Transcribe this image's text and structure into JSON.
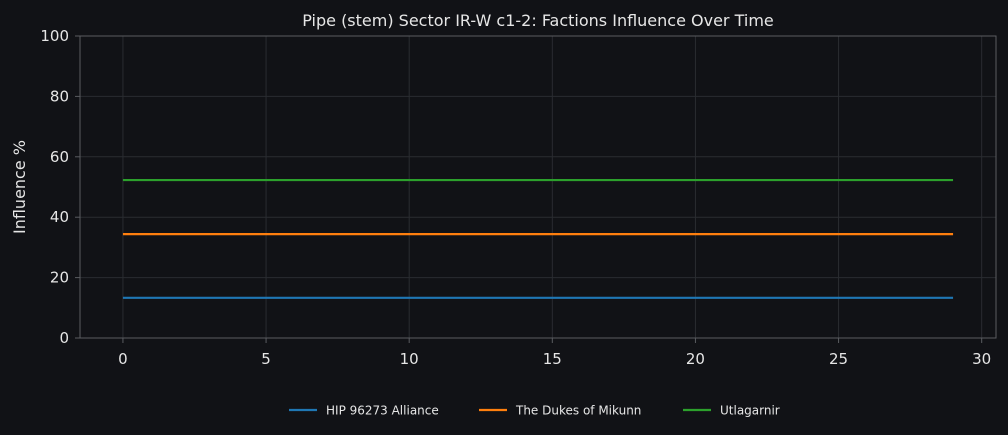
{
  "chart_data": {
    "type": "line",
    "title": "Pipe (stem) Sector IR-W c1-2: Factions Influence Over Time",
    "xlabel": "",
    "ylabel": "Influence %",
    "xlim": [
      -1.5,
      30.5
    ],
    "ylim": [
      0,
      100
    ],
    "x_ticks": [
      0,
      5,
      10,
      15,
      20,
      25,
      30
    ],
    "y_ticks": [
      0,
      20,
      40,
      60,
      80,
      100
    ],
    "grid": true,
    "legend_position": "bottom-center",
    "x": [
      0,
      1,
      2,
      3,
      4,
      5,
      6,
      7,
      8,
      9,
      10,
      11,
      12,
      13,
      14,
      15,
      16,
      17,
      18,
      19,
      20,
      21,
      22,
      23,
      24,
      25,
      26,
      27,
      28,
      29
    ],
    "series": [
      {
        "name": "HIP 96273 Alliance",
        "color": "#1f77b4",
        "values": [
          13.3,
          13.3,
          13.3,
          13.3,
          13.3,
          13.3,
          13.3,
          13.3,
          13.3,
          13.3,
          13.3,
          13.3,
          13.3,
          13.3,
          13.3,
          13.3,
          13.3,
          13.3,
          13.3,
          13.3,
          13.3,
          13.3,
          13.3,
          13.3,
          13.3,
          13.3,
          13.3,
          13.3,
          13.3,
          13.3
        ]
      },
      {
        "name": "The Dukes of Mikunn",
        "color": "#ff7f0e",
        "values": [
          34.4,
          34.4,
          34.4,
          34.4,
          34.4,
          34.4,
          34.4,
          34.4,
          34.4,
          34.4,
          34.4,
          34.4,
          34.4,
          34.4,
          34.4,
          34.4,
          34.4,
          34.4,
          34.4,
          34.4,
          34.4,
          34.4,
          34.4,
          34.4,
          34.4,
          34.4,
          34.4,
          34.4,
          34.4,
          34.4
        ]
      },
      {
        "name": "Utlagarnir",
        "color": "#2ca02c",
        "values": [
          52.3,
          52.3,
          52.3,
          52.3,
          52.3,
          52.3,
          52.3,
          52.3,
          52.3,
          52.3,
          52.3,
          52.3,
          52.3,
          52.3,
          52.3,
          52.3,
          52.3,
          52.3,
          52.3,
          52.3,
          52.3,
          52.3,
          52.3,
          52.3,
          52.3,
          52.3,
          52.3,
          52.3,
          52.3,
          52.3
        ]
      }
    ]
  },
  "colors": {
    "background": "#111216",
    "grid": "#2a2c31",
    "axis": "#5a5c60",
    "text": "#e6e6e6"
  }
}
